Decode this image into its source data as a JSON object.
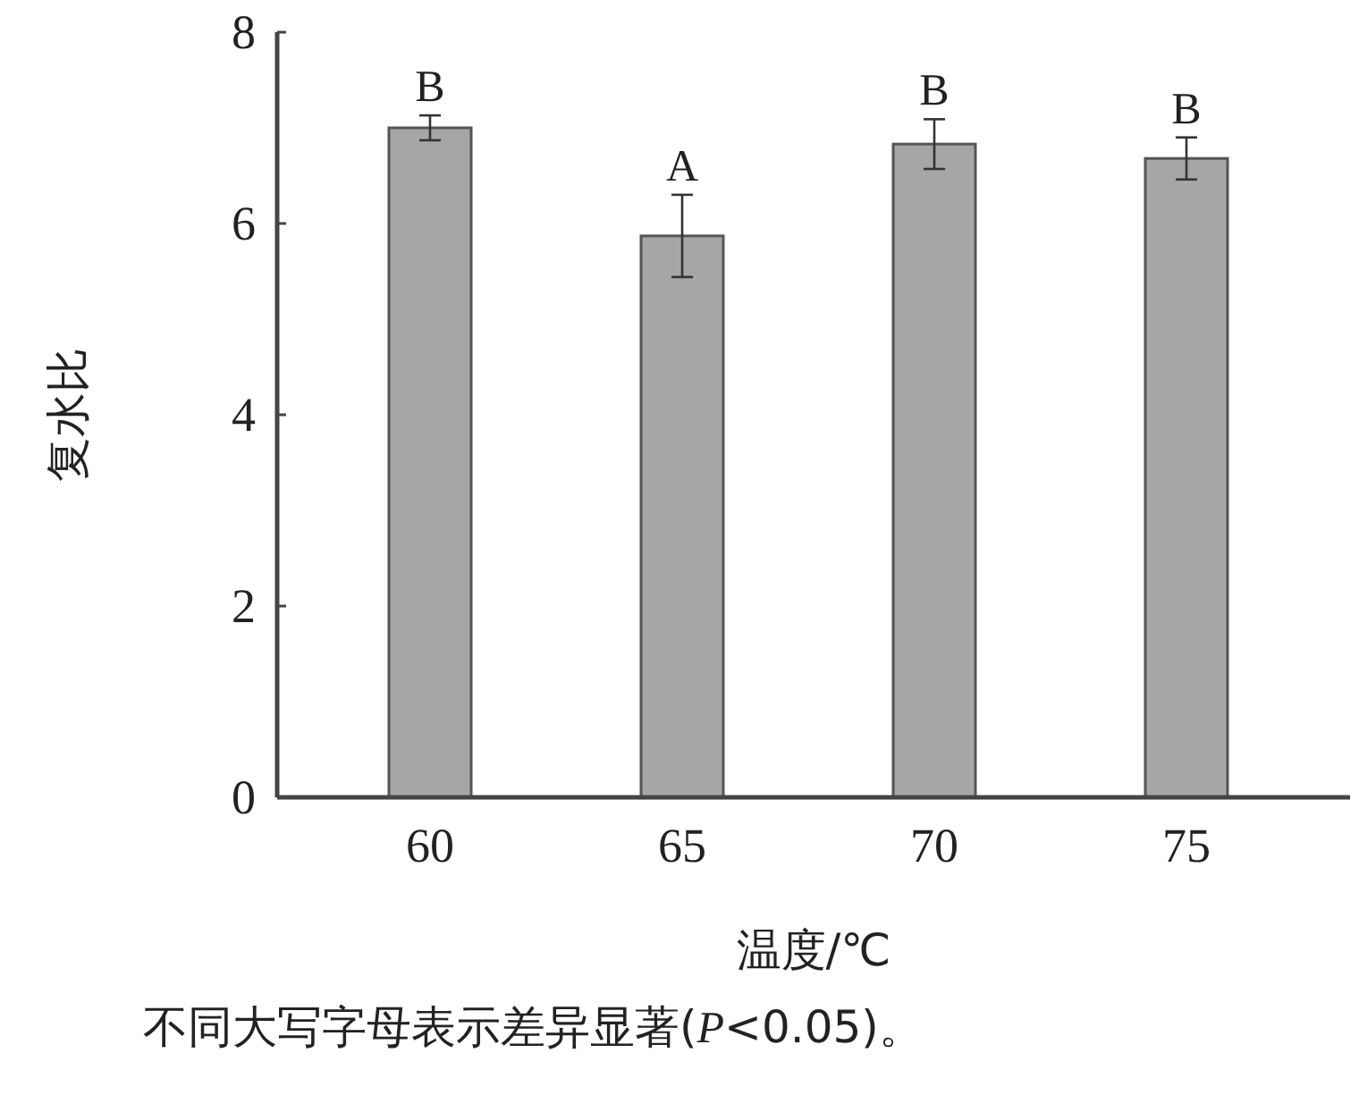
{
  "chart_data": {
    "type": "bar",
    "xlabel": "温度/℃",
    "ylabel": "复水比",
    "categories": [
      "60",
      "65",
      "70",
      "75"
    ],
    "values": [
      7.0,
      5.87,
      6.83,
      6.68
    ],
    "errors": [
      0.13,
      0.43,
      0.26,
      0.22
    ],
    "color": "#a6a6a6",
    "ylim": [
      0,
      8
    ],
    "yticks": [
      0,
      2,
      4,
      6,
      8
    ],
    "annotations": [
      {
        "text": "B",
        "x": "60",
        "y": 7.13
      },
      {
        "text": "A",
        "x": "65",
        "y": 6.3
      },
      {
        "text": "B",
        "x": "70",
        "y": 7.09
      },
      {
        "text": "B",
        "x": "75",
        "y": 6.9
      },
      "不同大写字母表示差异显著(*P*<0.05)。"
    ]
  }
}
